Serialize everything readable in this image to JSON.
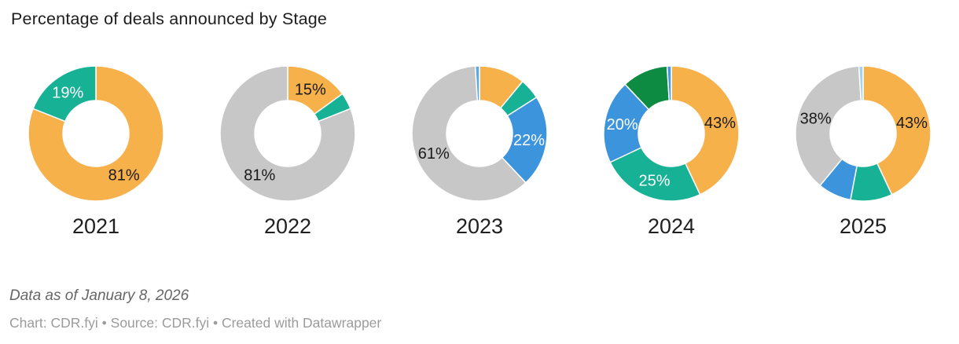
{
  "header": {
    "title": "Percentage of deals announced by Stage"
  },
  "footer": {
    "note": "Data as of January 8, 2026",
    "credit": "Chart: CDR.fyi • Source: CDR.fyi • Created with Datawrapper"
  },
  "chart_data": {
    "type": "pie",
    "variant": "donut",
    "title": "Percentage of deals announced by Stage",
    "legend_position": "none",
    "units": "percent",
    "slice_order": "clockwise-from-top",
    "years": [
      {
        "label": "2021",
        "slices": [
          {
            "value": 81,
            "color": "#f7b14a",
            "label": "81%",
            "label_color": "#1a1a1a"
          },
          {
            "value": 19,
            "color": "#17b295",
            "label": "19%",
            "label_color": "#ffffff"
          }
        ]
      },
      {
        "label": "2022",
        "slices": [
          {
            "value": 15,
            "color": "#f7b14a",
            "label": "15%",
            "label_color": "#1a1a1a"
          },
          {
            "value": 4,
            "color": "#17b295",
            "label": "",
            "label_color": ""
          },
          {
            "value": 81,
            "color": "#c7c7c7",
            "label": "81%",
            "label_color": "#1a1a1a"
          }
        ]
      },
      {
        "label": "2023",
        "slices": [
          {
            "value": 11,
            "color": "#f7b14a",
            "label": "",
            "label_color": ""
          },
          {
            "value": 5,
            "color": "#17b295",
            "label": "",
            "label_color": ""
          },
          {
            "value": 22,
            "color": "#3b94dc",
            "label": "22%",
            "label_color": "#ffffff"
          },
          {
            "value": 61,
            "color": "#c7c7c7",
            "label": "61%",
            "label_color": "#1a1a1a"
          },
          {
            "value": 1,
            "color": "#5fa8e4",
            "label": "",
            "label_color": ""
          }
        ]
      },
      {
        "label": "2024",
        "slices": [
          {
            "value": 43,
            "color": "#f7b14a",
            "label": "43%",
            "label_color": "#1a1a1a"
          },
          {
            "value": 25,
            "color": "#17b295",
            "label": "25%",
            "label_color": "#ffffff"
          },
          {
            "value": 20,
            "color": "#3b94dc",
            "label": "20%",
            "label_color": "#ffffff"
          },
          {
            "value": 11,
            "color": "#0e8b43",
            "label": "",
            "label_color": ""
          },
          {
            "value": 1,
            "color": "#4598df",
            "label": "",
            "label_color": ""
          }
        ]
      },
      {
        "label": "2025",
        "slices": [
          {
            "value": 43,
            "color": "#f7b14a",
            "label": "43%",
            "label_color": "#1a1a1a"
          },
          {
            "value": 10,
            "color": "#17b295",
            "label": "",
            "label_color": ""
          },
          {
            "value": 8,
            "color": "#3b94dc",
            "label": "",
            "label_color": ""
          },
          {
            "value": 38,
            "color": "#c7c7c7",
            "label": "38%",
            "label_color": "#1a1a1a"
          },
          {
            "value": 1,
            "color": "#a5d2f0",
            "label": "",
            "label_color": ""
          }
        ]
      }
    ]
  }
}
